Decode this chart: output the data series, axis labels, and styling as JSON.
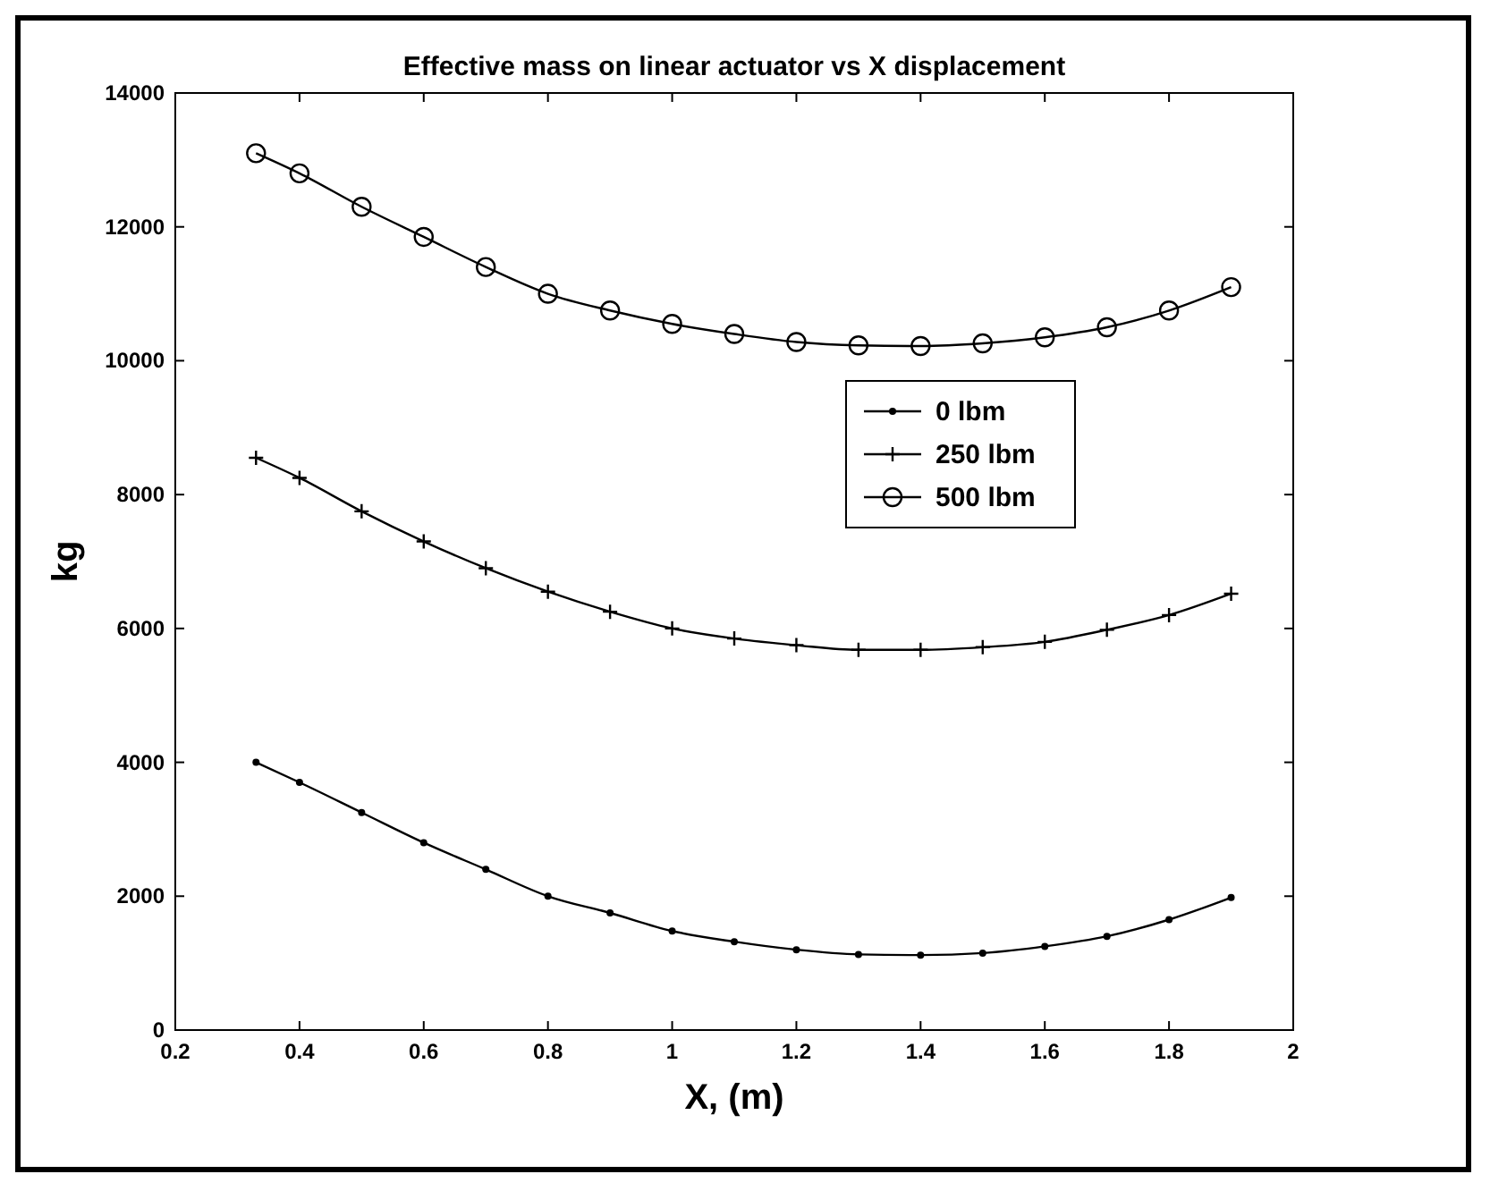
{
  "chart_data": {
    "type": "line",
    "title": "Effective mass on linear actuator vs X displacement",
    "xlabel": "X, (m)",
    "ylabel": "kg",
    "x": [
      0.33,
      0.4,
      0.5,
      0.6,
      0.7,
      0.8,
      0.9,
      1.0,
      1.1,
      1.2,
      1.3,
      1.4,
      1.5,
      1.6,
      1.7,
      1.8,
      1.9
    ],
    "series": [
      {
        "name": "0 lbm",
        "color": "#000000",
        "marker": "circle",
        "values": [
          4000,
          3700,
          3250,
          2800,
          2400,
          2000,
          1750,
          1480,
          1320,
          1200,
          1130,
          1120,
          1150,
          1250,
          1400,
          1650,
          1980
        ]
      },
      {
        "name": "250 lbm",
        "color": "#000000",
        "marker": "cross",
        "values": [
          8550,
          8250,
          7750,
          7300,
          6900,
          6550,
          6250,
          6000,
          5850,
          5750,
          5680,
          5680,
          5720,
          5800,
          5980,
          6200,
          6520
        ]
      },
      {
        "name": "500 lbm",
        "color": "#000000",
        "marker": "circle",
        "values": [
          13100,
          12800,
          12300,
          11850,
          11400,
          11000,
          10750,
          10550,
          10400,
          10280,
          10230,
          10220,
          10260,
          10350,
          10500,
          10750,
          11100
        ]
      }
    ],
    "xlim": [
      0.2,
      2
    ],
    "xticks": [
      0.2,
      0.4,
      0.6,
      0.8,
      1,
      1.2,
      1.4,
      1.6,
      1.8,
      2
    ],
    "ylim": [
      0,
      14000
    ],
    "yticks": [
      0,
      2000,
      4000,
      6000,
      8000,
      10000,
      12000,
      14000
    ],
    "grid": false,
    "legend": "right",
    "line_style": "solid"
  }
}
